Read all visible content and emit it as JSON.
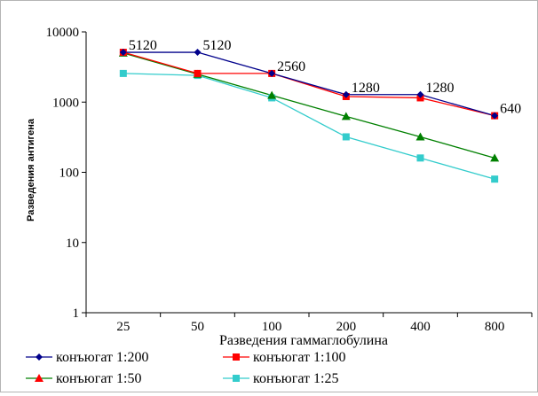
{
  "chart_data": {
    "type": "line",
    "categories": [
      "25",
      "50",
      "100",
      "200",
      "400",
      "800"
    ],
    "xlabel": "Разведения гаммаглобулина",
    "ylabel": "Разведения антигена",
    "yscale": "log",
    "ylim": [
      1,
      10000
    ],
    "yticks": [
      "1",
      "10",
      "100",
      "1000",
      "10000"
    ],
    "grid": false,
    "legend_position": "bottom",
    "series": [
      {
        "name": "конъюгат 1:200",
        "color": "#00008b",
        "marker": "diamond",
        "values": [
          5120,
          5120,
          2560,
          1280,
          1280,
          640
        ]
      },
      {
        "name": "конъюгат 1:100",
        "color": "#ff0000",
        "marker": "square",
        "values": [
          5120,
          2560,
          2560,
          1200,
          1150,
          640
        ]
      },
      {
        "name": "конъюгат 1:50",
        "color": "#008000",
        "marker": "triangle",
        "triangle_color": "#ff0000",
        "values": [
          5000,
          2500,
          1250,
          625,
          320,
          160
        ]
      },
      {
        "name": "конъюгат 1:25",
        "color": "#33cccc",
        "marker": "square",
        "values": [
          2560,
          2400,
          1150,
          320,
          160,
          80
        ]
      }
    ],
    "data_labels": [
      {
        "category": "25",
        "value": 5120,
        "text": "5120"
      },
      {
        "category": "50",
        "value": 5120,
        "text": "5120"
      },
      {
        "category": "100",
        "value": 2560,
        "text": "2560"
      },
      {
        "category": "200",
        "value": 1280,
        "text": "1280"
      },
      {
        "category": "400",
        "value": 1280,
        "text": "1280"
      },
      {
        "category": "800",
        "value": 640,
        "text": "640"
      }
    ]
  }
}
